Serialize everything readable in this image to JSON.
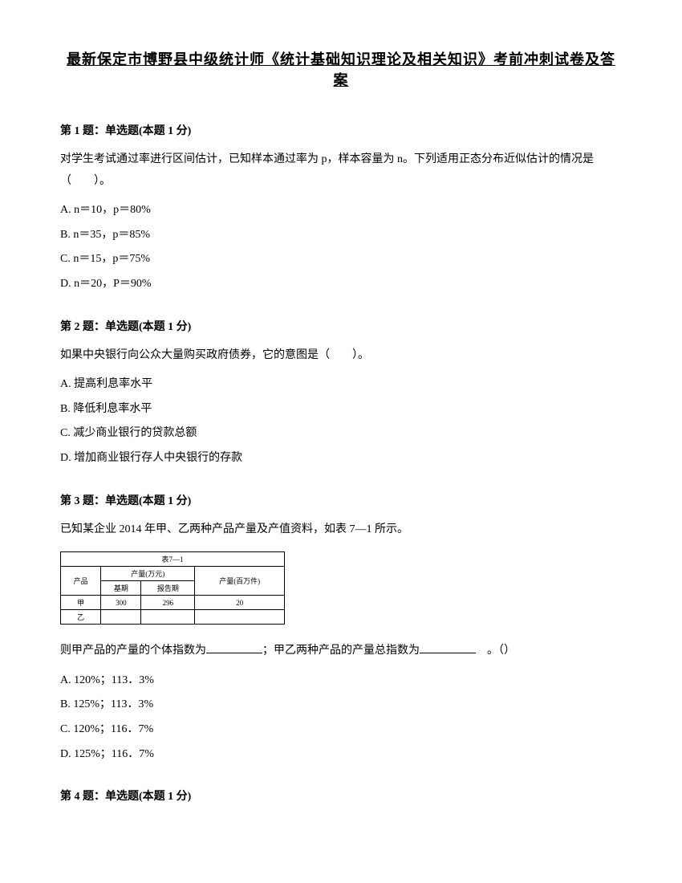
{
  "title": "最新保定市博野县中级统计师《统计基础知识理论及相关知识》考前冲刺试卷及答案",
  "q1": {
    "header": "第 1 题：单选题(本题 1 分)",
    "text": "对学生考试通过率进行区间估计，已知样本通过率为 p，样本容量为 n。下列适用正态分布近似估计的情况是（　　）。",
    "optA": "A. n＝10，p＝80%",
    "optB": "B. n＝35，p＝85%",
    "optC": "C. n＝15，p＝75%",
    "optD": "D. n＝20，P＝90%"
  },
  "q2": {
    "header": "第 2 题：单选题(本题 1 分)",
    "text": "如果中央银行向公众大量购买政府债券，它的意图是（　　）。",
    "optA": "A. 提高利息率水平",
    "optB": "B. 降低利息率水平",
    "optC": "C. 减少商业银行的贷款总额",
    "optD": "D. 增加商业银行存人中央银行的存款"
  },
  "q3": {
    "header": "第 3 题：单选题(本题 1 分)",
    "text": "已知某企业 2014 年甲、乙两种产品产量及产值资料，如表 7—1 所示。",
    "tableTitle": "表7—1",
    "tableHeaders": {
      "col1": "产品",
      "col2": "产量(万元)",
      "col3": "报告期",
      "col4": "产量(百万件)"
    },
    "tableSubHeaders": {
      "base": "基期",
      "report": "报告期"
    },
    "tableRow1": {
      "c1": "甲",
      "c2": "300",
      "c3": "296",
      "c4": "20"
    },
    "tableRow2": {
      "c1": "乙",
      "c2": "",
      "c3": "",
      "c4": ""
    },
    "text2a": "则甲产品的产量的个体指数为",
    "text2b": "；甲乙两种产品的产量总指数为",
    "text2c": "　。（）",
    "optA": "A. 120%；113．3%",
    "optB": "B. 125%；113．3%",
    "optC": "C. 120%；116．7%",
    "optD": "D. 125%；116．7%"
  },
  "q4": {
    "header": "第 4 题：单选题(本题 1 分)"
  }
}
